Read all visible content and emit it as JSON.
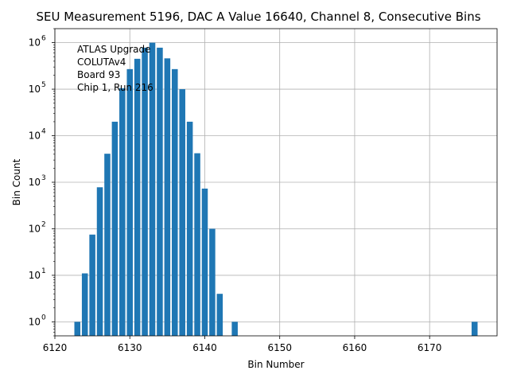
{
  "chart_data": {
    "type": "bar",
    "title": "SEU Measurement 5196, DAC A Value 16640, Channel 8, Consecutive Bins",
    "xlabel": "Bin Number",
    "ylabel": "Bin Count",
    "yscale": "log",
    "xlim": [
      6120,
      6179
    ],
    "ylim": [
      0.5,
      2000000
    ],
    "grid": true,
    "bar_color": "#1f77b4",
    "x_ticks": [
      {
        "value": 6120,
        "label": "6120"
      },
      {
        "value": 6130,
        "label": "6130"
      },
      {
        "value": 6140,
        "label": "6140"
      },
      {
        "value": 6150,
        "label": "6150"
      },
      {
        "value": 6160,
        "label": "6160"
      },
      {
        "value": 6170,
        "label": "6170"
      }
    ],
    "y_ticks": [
      {
        "value": 1,
        "base": "10",
        "exp": "0"
      },
      {
        "value": 10,
        "base": "10",
        "exp": "1"
      },
      {
        "value": 100,
        "base": "10",
        "exp": "2"
      },
      {
        "value": 1000,
        "base": "10",
        "exp": "3"
      },
      {
        "value": 10000,
        "base": "10",
        "exp": "4"
      },
      {
        "value": 100000,
        "base": "10",
        "exp": "5"
      },
      {
        "value": 1000000,
        "base": "10",
        "exp": "6"
      }
    ],
    "annotation_lines": [
      "ATLAS Upgrade",
      "COLUTAv4",
      " Board 93",
      "Chip 1, Run 216"
    ],
    "x": [
      6123,
      6124,
      6125,
      6126,
      6127,
      6128,
      6129,
      6130,
      6131,
      6132,
      6133,
      6134,
      6135,
      6136,
      6137,
      6138,
      6139,
      6140,
      6141,
      6142,
      6144,
      6176
    ],
    "values": [
      1,
      11,
      75,
      780,
      4100,
      20000,
      105000,
      270000,
      450000,
      780000,
      1000000,
      780000,
      460000,
      270000,
      100000,
      20000,
      4200,
      730,
      100,
      4,
      1,
      1
    ]
  }
}
